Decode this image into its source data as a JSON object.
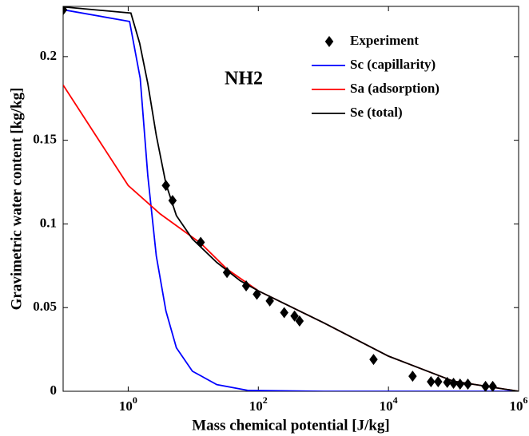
{
  "chart_data": {
    "type": "scatter-line",
    "annotation": "NH2",
    "x_label": "Mass chemical potential [J/kg]",
    "y_label": "Gravimetric water content [kg/kg]",
    "xscale": "log",
    "xlim": [
      0.1,
      1000000
    ],
    "xticks": [
      {
        "value": 1,
        "label": "10^0"
      },
      {
        "value": 100,
        "label": "10^2"
      },
      {
        "value": 10000,
        "label": "10^4"
      },
      {
        "value": 1000000,
        "label": "10^6"
      }
    ],
    "ylim": [
      0,
      0.23
    ],
    "yticks": [
      0,
      0.05,
      0.1,
      0.15,
      0.2
    ],
    "legend": "upper right",
    "series": [
      {
        "name": "Experiment",
        "color": "#000000",
        "marker": "diamond",
        "x": [
          0.1,
          3.8,
          4.8,
          13,
          33,
          65,
          95,
          150,
          250,
          360,
          430,
          5900,
          23500,
          45000,
          58000,
          80000,
          100000,
          126000,
          166000,
          310000,
          400000
        ],
        "values": [
          0.228,
          0.123,
          0.114,
          0.089,
          0.071,
          0.063,
          0.058,
          0.054,
          0.047,
          0.045,
          0.042,
          0.019,
          0.009,
          0.0057,
          0.0057,
          0.0053,
          0.0048,
          0.0043,
          0.0043,
          0.0029,
          0.0029
        ]
      },
      {
        "name": "Sc (capillarity)",
        "color": "#0000ff",
        "marker": "line",
        "x": [
          0.1,
          1.05,
          1.53,
          2.0,
          2.7,
          3.8,
          5.5,
          9.7,
          23,
          70,
          1000,
          1000000
        ],
        "values": [
          0.228,
          0.221,
          0.187,
          0.129,
          0.081,
          0.048,
          0.026,
          0.012,
          0.004,
          0.0005,
          0,
          0
        ]
      },
      {
        "name": "Sa (adsorption)",
        "color": "#ff0000",
        "marker": "line",
        "x": [
          0.1,
          1,
          3.1,
          13,
          33,
          100,
          1000,
          10000,
          100000,
          1000000
        ],
        "values": [
          0.183,
          0.123,
          0.106,
          0.0885,
          0.073,
          0.06,
          0.041,
          0.021,
          0.006,
          0
        ]
      },
      {
        "name": "Se (total)",
        "color": "#000000",
        "marker": "line",
        "x": [
          0.1,
          1.1,
          1.5,
          2.0,
          2.7,
          3.8,
          5.5,
          9.7,
          23,
          53,
          100,
          1000,
          10000,
          100000,
          1000000
        ],
        "values": [
          0.2297,
          0.226,
          0.208,
          0.184,
          0.153,
          0.124,
          0.105,
          0.091,
          0.077,
          0.066,
          0.06,
          0.041,
          0.021,
          0.006,
          0
        ]
      }
    ]
  }
}
